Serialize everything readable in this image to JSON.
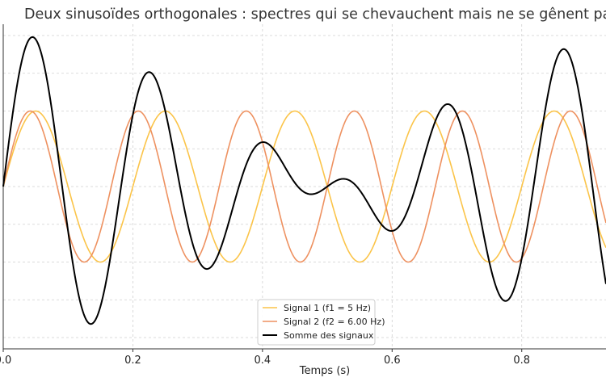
{
  "chart_data": {
    "type": "line",
    "title": "Deux sinusoïdes orthogonales : spectres qui se chevauchent mais ne se gênent pas",
    "xlabel": "Temps (s)",
    "ylabel": "",
    "xlim": [
      0,
      0.93
    ],
    "ylim": [
      -2.15,
      2.15
    ],
    "x_ticks": [
      0.0,
      0.2,
      0.4,
      0.6,
      0.8
    ],
    "x_tick_labels": [
      "0.0",
      "0.2",
      "0.4",
      "0.6",
      "0.8"
    ],
    "y_gridlines": [
      -2,
      -1.5,
      -1,
      -0.5,
      0,
      0.5,
      1,
      1.5,
      2
    ],
    "grid": true,
    "legend_position": "bottom-center",
    "series": [
      {
        "name": "Signal 1 (f1 = 5 Hz)",
        "function": "sin(2*pi*5*t)",
        "frequency_hz": 5,
        "amplitude": 1,
        "color": "#FBC449"
      },
      {
        "name": "Signal 2 (f2 = 6.00 Hz)",
        "function": "sin(2*pi*6*t)",
        "frequency_hz": 6,
        "amplitude": 1,
        "color": "#EE9160"
      },
      {
        "name": "Somme des signaux",
        "function": "sin(2*pi*5*t) + sin(2*pi*6*t)",
        "color": "#000000"
      }
    ]
  }
}
